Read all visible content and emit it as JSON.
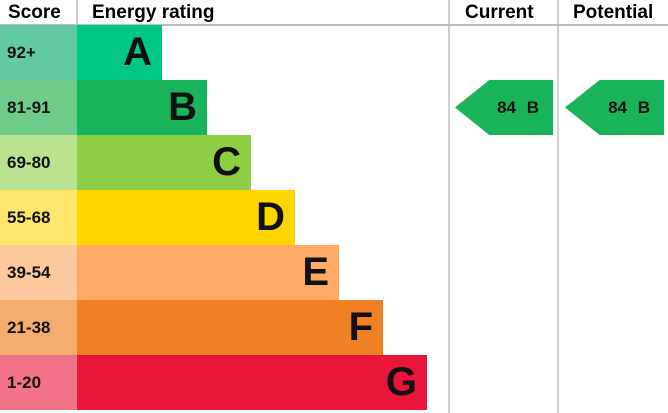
{
  "headers": {
    "score": "Score",
    "energy_rating": "Energy rating",
    "current": "Current",
    "potential": "Potential"
  },
  "chart_data": {
    "type": "bar",
    "categories": [
      "A",
      "B",
      "C",
      "D",
      "E",
      "F",
      "G"
    ],
    "score_ranges": [
      "92+",
      "81-91",
      "69-80",
      "55-68",
      "39-54",
      "21-38",
      "1-20"
    ],
    "bar_colors": [
      "#00c781",
      "#19b459",
      "#8dce46",
      "#ffd500",
      "#fcaa65",
      "#ef8023",
      "#e9153b"
    ],
    "score_colors": [
      "#62c9a2",
      "#6fcb8c",
      "#bbe28e",
      "#ffe56a",
      "#fec89d",
      "#f4ad6f",
      "#f27389"
    ],
    "current": {
      "value": 84,
      "band": "B",
      "label": "84 B",
      "color": "#19b459"
    },
    "potential": {
      "value": 84,
      "band": "B",
      "label": "84 B",
      "color": "#19b459"
    }
  }
}
